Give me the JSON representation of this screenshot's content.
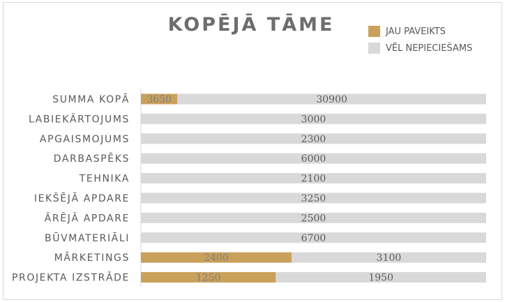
{
  "chart_data": {
    "type": "bar",
    "orientation": "horizontal",
    "stacked": true,
    "title": "KOPĒJĀ TĀME",
    "legend_position": "top-right",
    "categories": [
      "SUMMA KOPĀ",
      "LABIEKĀRTOJUMS",
      "APGAISMOJUMS",
      "DARBASPĒKS",
      "TEHNIKA",
      "IEKŠĒJĀ APDARE",
      "ĀRĒJĀ APDARE",
      "BŪVMATERIĀLI",
      "MĀRKETINGS",
      "PROJEKTA IZSTRĀDE"
    ],
    "series": [
      {
        "name": "JAU PAVEIKTS",
        "color": "#c9a15b",
        "values": [
          3650,
          0,
          0,
          0,
          0,
          0,
          0,
          0,
          2400,
          1250
        ]
      },
      {
        "name": "VĒL NEPIECIEŠAMS",
        "color": "#d9d9d9",
        "values": [
          30900,
          3000,
          2300,
          6000,
          2100,
          3250,
          2500,
          6700,
          3100,
          1950
        ]
      }
    ],
    "grid": false
  }
}
